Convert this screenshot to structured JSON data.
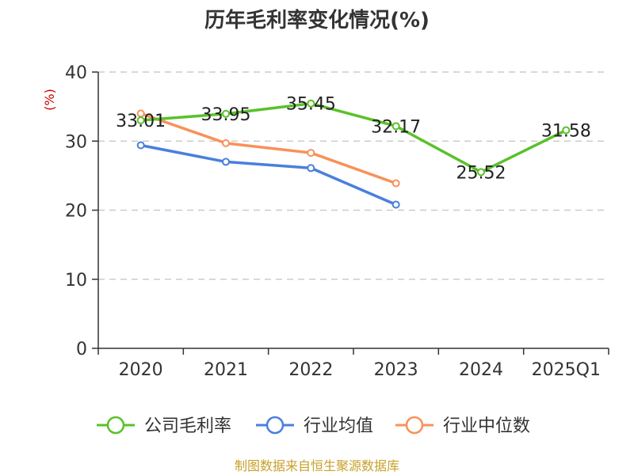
{
  "chart_data": {
    "type": "line",
    "title": "历年毛利率变化情况(%)",
    "ylabel": "(%)",
    "xlabel": "",
    "ylim": [
      0,
      40
    ],
    "yticks": [
      0,
      10,
      20,
      30,
      40
    ],
    "categories": [
      "2020",
      "2021",
      "2022",
      "2023",
      "2024",
      "2025Q1"
    ],
    "grid": true,
    "legend_position": "bottom",
    "series": [
      {
        "name": "公司毛利率",
        "color": "#5ac12a",
        "values": [
          33.01,
          33.95,
          35.45,
          32.17,
          25.52,
          31.58
        ],
        "labels": [
          "33.01",
          "33.95",
          "35.45",
          "32.17",
          "25.52",
          "31.58"
        ]
      },
      {
        "name": "行业均值",
        "color": "#4a7fdc",
        "values": [
          29.4,
          27.0,
          26.1,
          20.8,
          null,
          null
        ]
      },
      {
        "name": "行业中位数",
        "color": "#f8915a",
        "values": [
          34.0,
          29.7,
          28.3,
          23.9,
          null,
          null
        ]
      }
    ]
  },
  "source_text": "制图数据来自恒生聚源数据库"
}
